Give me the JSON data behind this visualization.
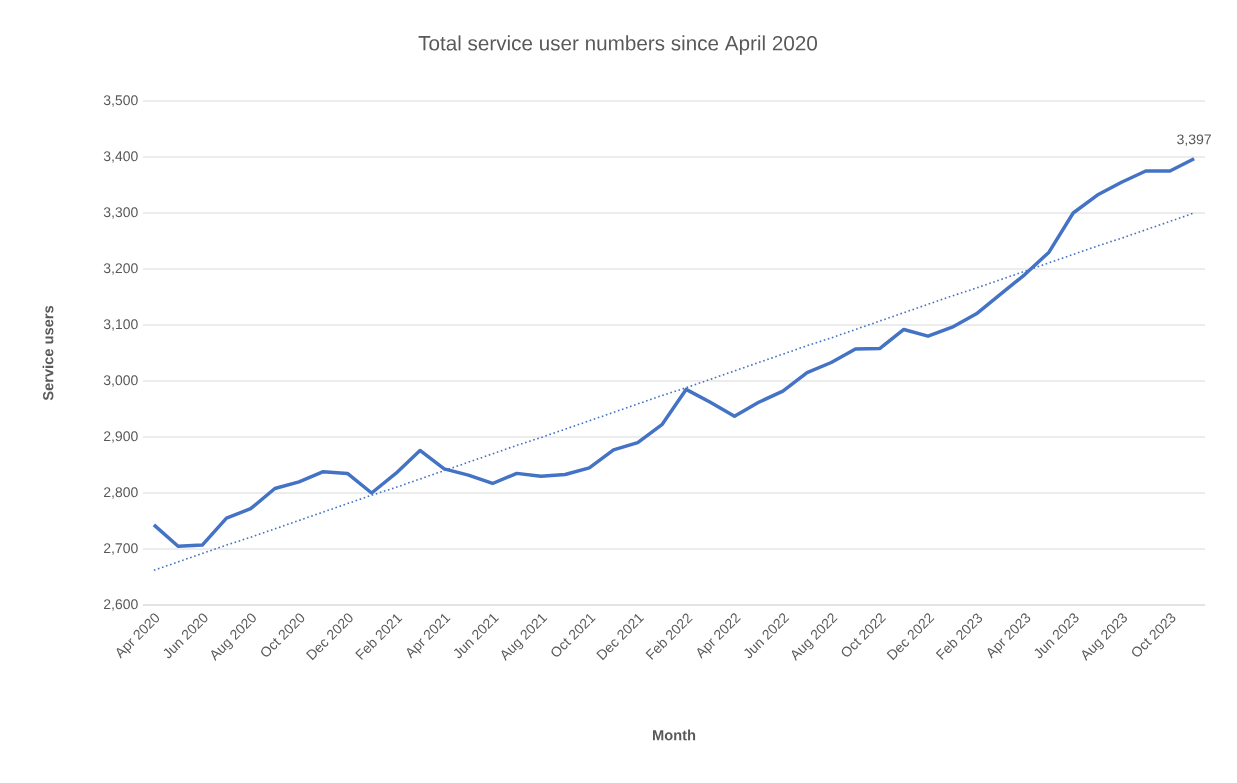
{
  "chart_data": {
    "type": "line",
    "title": "Total service user numbers since April 2020",
    "xlabel": "Month",
    "ylabel": "Service users",
    "categories": [
      "Apr 2020",
      null,
      "Jun 2020",
      null,
      "Aug 2020",
      null,
      "Oct 2020",
      null,
      "Dec 2020",
      null,
      "Feb 2021",
      null,
      "Apr 2021",
      null,
      "Jun 2021",
      null,
      "Aug 2021",
      null,
      "Oct 2021",
      null,
      "Dec 2021",
      null,
      "Feb 2022",
      null,
      "Apr 2022",
      null,
      "Jun 2022",
      null,
      "Aug 2022",
      null,
      "Oct 2022",
      null,
      "Dec 2022",
      null,
      "Feb 2023",
      null,
      "Apr 2023",
      null,
      "Jun 2023",
      null,
      "Aug 2023",
      null,
      "Oct 2023",
      null
    ],
    "series": [
      {
        "color": "#4472c4",
        "line_style": "solid",
        "values": [
          2743,
          2705,
          2707,
          2755,
          2772,
          2808,
          2820,
          2838,
          2835,
          2800,
          2835,
          2876,
          2843,
          2832,
          2817,
          2835,
          2830,
          2833,
          2845,
          2877,
          2890,
          2922,
          2985,
          2962,
          2937,
          2962,
          2982,
          3015,
          3033,
          3057,
          3058,
          3092,
          3080,
          3096,
          3120,
          3155,
          3190,
          3230,
          3300,
          3332,
          3355,
          3375,
          3375,
          3397
        ],
        "value_labels": [
          null,
          null,
          null,
          null,
          null,
          null,
          null,
          null,
          null,
          null,
          null,
          null,
          null,
          null,
          null,
          null,
          null,
          null,
          null,
          null,
          null,
          null,
          null,
          null,
          null,
          null,
          null,
          null,
          null,
          null,
          null,
          null,
          null,
          null,
          null,
          null,
          null,
          null,
          null,
          null,
          null,
          null,
          null,
          "3,397"
        ]
      },
      {
        "type": "line",
        "color": "#4472c4",
        "line_style": "dotted",
        "values": [
          2662,
          2677,
          2692,
          2707,
          2721,
          2736,
          2751,
          2766,
          2781,
          2796,
          2810,
          2825,
          2840,
          2855,
          2870,
          2885,
          2899,
          2914,
          2929,
          2944,
          2959,
          2974,
          2988,
          3003,
          3018,
          3033,
          3048,
          3063,
          3077,
          3092,
          3107,
          3122,
          3137,
          3152,
          3166,
          3181,
          3196,
          3211,
          3226,
          3241,
          3255,
          3270,
          3285,
          3300
        ]
      }
    ],
    "ylim": [
      2600,
      3500
    ],
    "yticks": [
      {
        "value": 2600,
        "label": "2,600"
      },
      {
        "value": 2700,
        "label": "2,700"
      },
      {
        "value": 2800,
        "label": "2,800"
      },
      {
        "value": 2900,
        "label": "2,900"
      },
      {
        "value": 3000,
        "label": "3,000"
      },
      {
        "value": 3100,
        "label": "3,100"
      },
      {
        "value": 3200,
        "label": "3,200"
      },
      {
        "value": 3300,
        "label": "3,300"
      },
      {
        "value": 3400,
        "label": "3,400"
      },
      {
        "value": 3500,
        "label": "3,500"
      }
    ],
    "grid": "y",
    "legend": false
  }
}
